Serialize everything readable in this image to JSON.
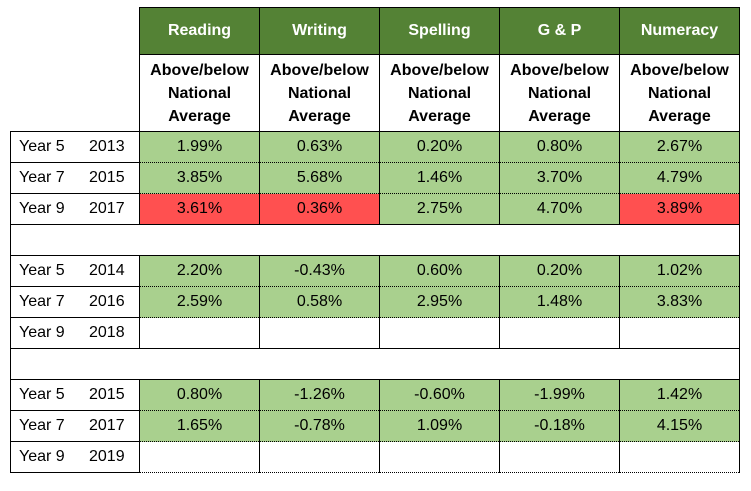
{
  "columns": [
    "Reading",
    "Writing",
    "Spelling",
    "G & P",
    "Numeracy"
  ],
  "subheader": [
    "Above/below",
    "National",
    "Average"
  ],
  "colors": {
    "header": "#548235",
    "green": "#a9d08e",
    "red": "#ff5050"
  },
  "groups": [
    {
      "rows": [
        {
          "year": "Year 5",
          "date": "2013",
          "values": [
            "1.99%",
            "0.63%",
            "0.20%",
            "0.80%",
            "2.67%"
          ],
          "status": [
            "g",
            "g",
            "g",
            "g",
            "g"
          ]
        },
        {
          "year": "Year 7",
          "date": "2015",
          "values": [
            "3.85%",
            "5.68%",
            "1.46%",
            "3.70%",
            "4.79%"
          ],
          "status": [
            "g",
            "g",
            "g",
            "g",
            "g"
          ]
        },
        {
          "year": "Year 9",
          "date": "2017",
          "values": [
            "3.61%",
            "0.36%",
            "2.75%",
            "4.70%",
            "3.89%"
          ],
          "status": [
            "r",
            "r",
            "g",
            "g",
            "r"
          ]
        }
      ]
    },
    {
      "rows": [
        {
          "year": "Year 5",
          "date": "2014",
          "values": [
            "2.20%",
            "-0.43%",
            "0.60%",
            "0.20%",
            "1.02%"
          ],
          "status": [
            "g",
            "g",
            "g",
            "g",
            "g"
          ]
        },
        {
          "year": "Year 7",
          "date": "2016",
          "values": [
            "2.59%",
            "0.58%",
            "2.95%",
            "1.48%",
            "3.83%"
          ],
          "status": [
            "g",
            "g",
            "g",
            "g",
            "g"
          ]
        },
        {
          "year": "Year 9",
          "date": "2018",
          "values": [
            "",
            "",
            "",
            "",
            ""
          ],
          "status": [
            "",
            "",
            "",
            "",
            ""
          ]
        }
      ]
    },
    {
      "rows": [
        {
          "year": "Year 5",
          "date": "2015",
          "values": [
            "0.80%",
            "-1.26%",
            "-0.60%",
            "-1.99%",
            "1.42%"
          ],
          "status": [
            "g",
            "g",
            "g",
            "g",
            "g"
          ]
        },
        {
          "year": "Year 7",
          "date": "2017",
          "values": [
            "1.65%",
            "-0.78%",
            "1.09%",
            "-0.18%",
            "4.15%"
          ],
          "status": [
            "g",
            "g",
            "g",
            "g",
            "g"
          ]
        },
        {
          "year": "Year 9",
          "date": "2019",
          "values": [
            "",
            "",
            "",
            "",
            ""
          ],
          "status": [
            "",
            "",
            "",
            "",
            ""
          ]
        }
      ]
    }
  ]
}
